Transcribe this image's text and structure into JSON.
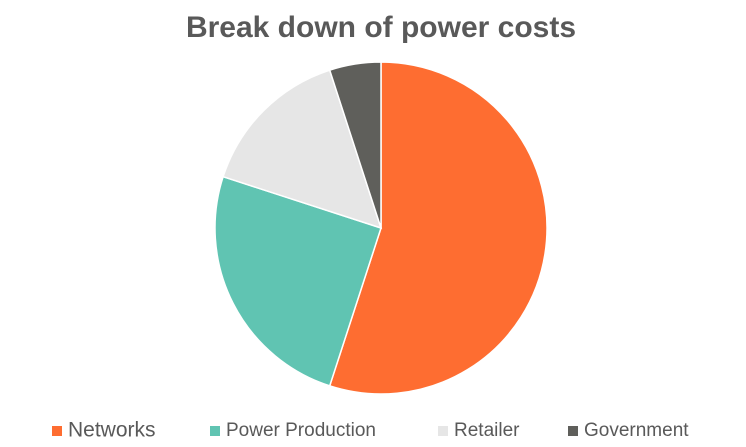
{
  "chart_data": {
    "type": "pie",
    "title": "Break down of power costs",
    "categories": [
      "Networks",
      "Power Production",
      "Retailer",
      "Government"
    ],
    "values": [
      55,
      25,
      15,
      5
    ],
    "colors": [
      "#fe6d31",
      "#60c4b2",
      "#e6e6e6",
      "#5f5f5b"
    ],
    "legend": "bottom"
  }
}
